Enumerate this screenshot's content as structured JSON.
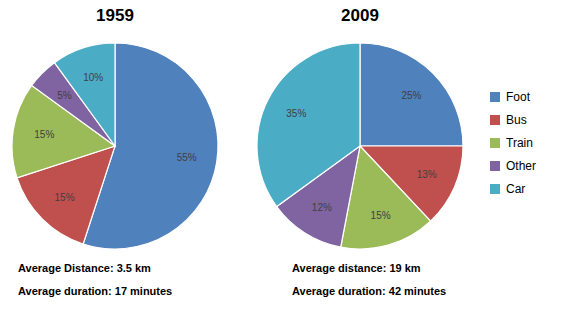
{
  "chart_data": [
    {
      "type": "pie",
      "title": "1959",
      "categories": [
        "Foot",
        "Bus",
        "Train",
        "Other",
        "Car"
      ],
      "values": [
        55,
        15,
        15,
        5,
        10
      ],
      "value_labels": [
        "55%",
        "15%",
        "15%",
        "5%",
        "10%"
      ],
      "colors": [
        "#4f81bd",
        "#c0504d",
        "#9bbb59",
        "#8064a2",
        "#4bacc6"
      ],
      "data_labels": true,
      "annotations": [
        "Average Distance: 3.5 km",
        "Average duration: 17 minutes"
      ]
    },
    {
      "type": "pie",
      "title": "2009",
      "categories": [
        "Foot",
        "Bus",
        "Train",
        "Other",
        "Car"
      ],
      "values": [
        25,
        13,
        15,
        12,
        35
      ],
      "value_labels": [
        "25%",
        "13%",
        "15%",
        "12%",
        "35%"
      ],
      "colors": [
        "#4f81bd",
        "#c0504d",
        "#9bbb59",
        "#8064a2",
        "#4bacc6"
      ],
      "data_labels": true,
      "legend": "right",
      "annotations": [
        "Average distance: 19 km",
        "Average duration: 42 minutes"
      ]
    }
  ]
}
